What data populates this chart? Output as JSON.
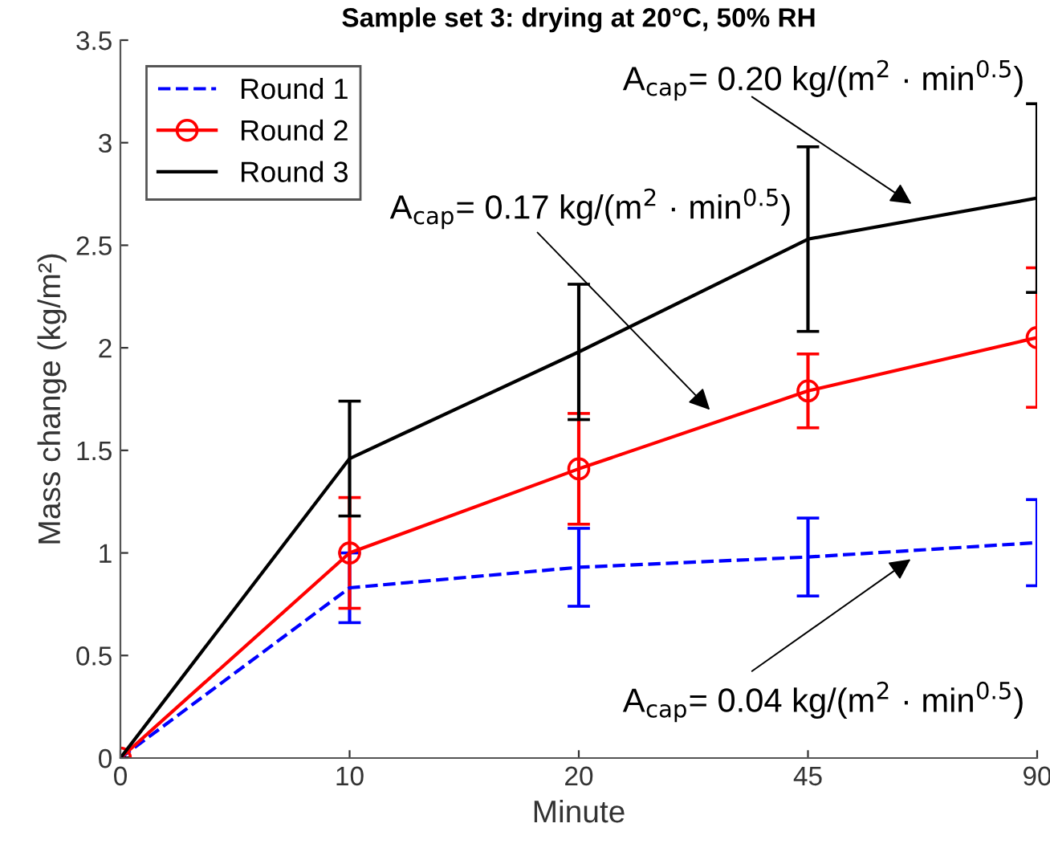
{
  "chart_data": {
    "type": "line",
    "title": "Sample set 3: drying at 20°C, 50% RH",
    "xlabel": "Minute",
    "ylabel": "Mass change (kg/m²)",
    "categories": [
      "0",
      "10",
      "20",
      "45",
      "90"
    ],
    "series": [
      {
        "name": "Round 1",
        "color": "#0000ff",
        "line_style": "dashed",
        "marker": "none",
        "values": [
          0,
          0.83,
          0.93,
          0.98,
          1.05
        ],
        "errors": [
          null,
          0.17,
          0.19,
          0.19,
          0.21
        ]
      },
      {
        "name": "Round 2",
        "color": "#ff0000",
        "line_style": "solid",
        "marker": "circle",
        "values": [
          0,
          1.0,
          1.41,
          1.79,
          2.05
        ],
        "errors": [
          null,
          0.27,
          0.27,
          0.18,
          0.34
        ]
      },
      {
        "name": "Round 3",
        "color": "#000000",
        "line_style": "solid",
        "marker": "none",
        "values": [
          0,
          1.46,
          1.98,
          2.53,
          2.73
        ],
        "errors": [
          null,
          0.28,
          0.33,
          0.45,
          0.46
        ]
      }
    ],
    "ylim": [
      0,
      3.5
    ],
    "yticks": [
      0,
      0.5,
      1,
      1.5,
      2,
      2.5,
      3,
      3.5
    ],
    "annotations": [
      "A$_{cap}$= 0.20 kg/(m$^{2}$ · min$^{0.5}$)",
      "A$_{cap}$= 0.17 kg/(m$^{2}$ · min$^{0.5}$)",
      "A$_{cap}$= 0.04 kg/(m$^{2}$ · min$^{0.5}$)"
    ],
    "legend": "top left",
    "grid": false
  }
}
